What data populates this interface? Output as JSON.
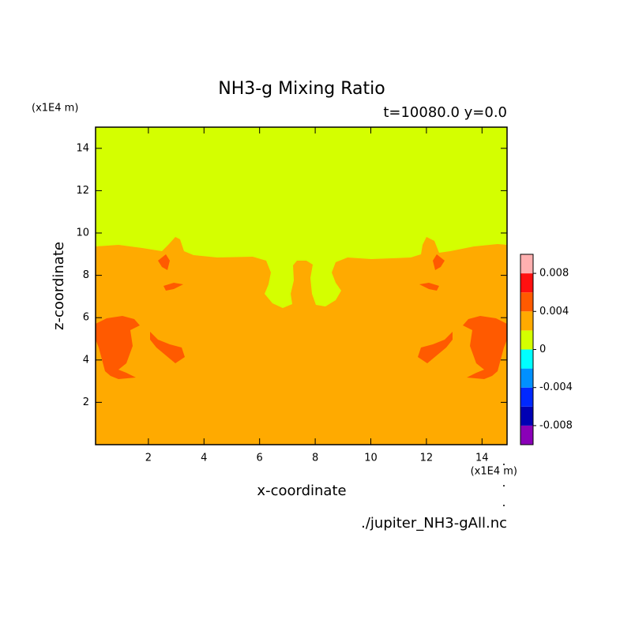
{
  "chart_data": {
    "type": "contour",
    "title": "NH3-g Mixing Ratio",
    "subtitle": "t=10080.0 y=0.0",
    "x_unit": "(x1E4 m)",
    "y_unit": "(x1E4 m)",
    "xlabel": "x-coordinate",
    "ylabel": "z-coordinate",
    "source": "./jupiter_NH3-gAll.nc",
    "xlim": [
      0.1,
      14.9
    ],
    "ylim": [
      0,
      15
    ],
    "xticks": [
      2,
      4,
      6,
      8,
      10,
      12,
      14
    ],
    "yticks": [
      2,
      4,
      6,
      8,
      10,
      12,
      14
    ],
    "colorbar": {
      "clim": [
        -0.01,
        0.01
      ],
      "colors": [
        "#8a00b8",
        "#0000b4",
        "#0028ff",
        "#0090ff",
        "#00ffff",
        "#d4ff00",
        "#ffaa00",
        "#ff5a00",
        "#ff1010",
        "#ffb0b0"
      ],
      "ticks": [
        -0.008,
        -0.004,
        0,
        0.004,
        0.008
      ]
    }
  }
}
